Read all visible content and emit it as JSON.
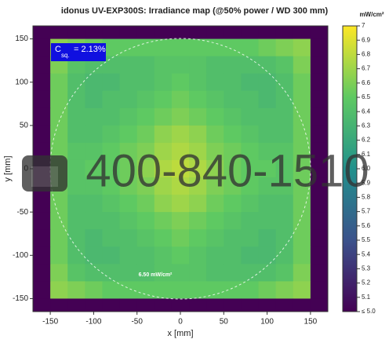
{
  "chart_data": {
    "type": "heatmap",
    "title": "idonus UV-EXP300S: Irradiance map (@50% power / WD 300 mm)",
    "x_label": "x [mm]",
    "y_label": "y [mm]",
    "colorbar_label": "mW/cm²",
    "colorscale": "viridis",
    "xlim": [
      -170,
      170
    ],
    "ylim": [
      -165,
      165
    ],
    "xticks": [
      -150,
      -100,
      -50,
      0,
      50,
      100,
      150
    ],
    "yticks": [
      -150,
      -100,
      -50,
      0,
      50,
      100,
      150
    ],
    "zlim": [
      5,
      7
    ],
    "zticks": [
      {
        "value": 5,
        "label": "≤ 5.0"
      },
      5.1,
      5.2,
      5.3,
      5.4,
      5.5,
      5.6,
      5.7,
      5.8,
      5.9,
      {
        "value": 6,
        "label": "6.0"
      },
      6.1,
      6.2,
      6.3,
      6.4,
      6.5,
      6.6,
      6.7,
      6.8,
      6.9,
      7
    ],
    "x": [
      -160,
      -140,
      -120,
      -100,
      -80,
      -60,
      -40,
      -20,
      0,
      20,
      40,
      60,
      80,
      100,
      120,
      140,
      160
    ],
    "y": [
      160,
      140,
      120,
      100,
      80,
      60,
      40,
      20,
      0,
      -20,
      -40,
      -60,
      -80,
      -100,
      -120,
      -140,
      -160
    ],
    "z": [
      [
        5.0,
        5.0,
        5.0,
        5.0,
        5.0,
        5.0,
        5.0,
        5.0,
        5.0,
        5.0,
        5.0,
        5.0,
        5.0,
        5.0,
        5.0,
        5.0,
        5.0
      ],
      [
        5.0,
        6.65,
        6.6,
        6.55,
        6.5,
        6.5,
        6.5,
        6.5,
        6.5,
        6.5,
        6.5,
        6.5,
        6.5,
        6.55,
        6.6,
        6.65,
        5.0
      ],
      [
        5.0,
        6.6,
        6.45,
        6.4,
        6.4,
        6.4,
        6.4,
        6.45,
        6.45,
        6.45,
        6.4,
        6.4,
        6.4,
        6.4,
        6.45,
        6.6,
        5.0
      ],
      [
        5.0,
        6.55,
        6.4,
        6.35,
        6.35,
        6.4,
        6.4,
        6.45,
        6.5,
        6.45,
        6.4,
        6.4,
        6.35,
        6.35,
        6.4,
        6.55,
        5.0
      ],
      [
        5.0,
        6.55,
        6.4,
        6.35,
        6.4,
        6.4,
        6.45,
        6.5,
        6.55,
        6.5,
        6.45,
        6.4,
        6.4,
        6.35,
        6.4,
        6.55,
        5.0
      ],
      [
        5.0,
        6.55,
        6.4,
        6.4,
        6.4,
        6.45,
        6.5,
        6.55,
        6.6,
        6.55,
        6.5,
        6.45,
        6.4,
        6.4,
        6.4,
        6.55,
        5.0
      ],
      [
        5.0,
        6.55,
        6.4,
        6.4,
        6.45,
        6.5,
        6.55,
        6.65,
        6.7,
        6.65,
        6.55,
        6.5,
        6.45,
        6.4,
        6.4,
        6.55,
        5.0
      ],
      [
        5.0,
        6.55,
        6.45,
        6.45,
        6.5,
        6.55,
        6.6,
        6.7,
        6.75,
        6.7,
        6.6,
        6.55,
        6.5,
        6.45,
        6.45,
        6.55,
        5.0
      ],
      [
        5.0,
        6.55,
        6.45,
        6.5,
        6.5,
        6.55,
        6.65,
        6.75,
        6.8,
        6.75,
        6.65,
        6.55,
        6.5,
        6.5,
        6.45,
        6.55,
        5.0
      ],
      [
        5.0,
        6.55,
        6.45,
        6.45,
        6.5,
        6.55,
        6.6,
        6.7,
        6.75,
        6.7,
        6.6,
        6.55,
        6.5,
        6.45,
        6.45,
        6.55,
        5.0
      ],
      [
        5.0,
        6.55,
        6.4,
        6.4,
        6.45,
        6.5,
        6.55,
        6.65,
        6.7,
        6.65,
        6.55,
        6.5,
        6.45,
        6.4,
        6.4,
        6.55,
        5.0
      ],
      [
        5.0,
        6.55,
        6.4,
        6.4,
        6.4,
        6.45,
        6.5,
        6.55,
        6.6,
        6.55,
        6.5,
        6.45,
        6.4,
        6.4,
        6.4,
        6.55,
        5.0
      ],
      [
        5.0,
        6.55,
        6.4,
        6.35,
        6.4,
        6.4,
        6.45,
        6.5,
        6.55,
        6.5,
        6.45,
        6.4,
        6.4,
        6.35,
        6.4,
        6.55,
        5.0
      ],
      [
        5.0,
        6.55,
        6.4,
        6.35,
        6.35,
        6.4,
        6.4,
        6.45,
        6.5,
        6.45,
        6.4,
        6.4,
        6.35,
        6.35,
        6.4,
        6.55,
        5.0
      ],
      [
        5.0,
        6.6,
        6.45,
        6.4,
        6.4,
        6.4,
        6.4,
        6.45,
        6.45,
        6.45,
        6.4,
        6.4,
        6.4,
        6.4,
        6.45,
        6.6,
        5.0
      ],
      [
        5.0,
        6.65,
        6.6,
        6.55,
        6.5,
        6.5,
        6.5,
        6.5,
        6.5,
        6.5,
        6.5,
        6.5,
        6.5,
        6.55,
        6.6,
        6.65,
        5.0
      ],
      [
        5.0,
        5.0,
        5.0,
        5.0,
        5.0,
        5.0,
        5.0,
        5.0,
        5.0,
        5.0,
        5.0,
        5.0,
        5.0,
        5.0,
        5.0,
        5.0,
        5.0
      ]
    ],
    "uniformity": {
      "symbol": "C",
      "subscript": "sq.",
      "text": "= 2.13%"
    },
    "circle_label": "6.50 mW/cm²",
    "watermark": "400-840-1510"
  }
}
